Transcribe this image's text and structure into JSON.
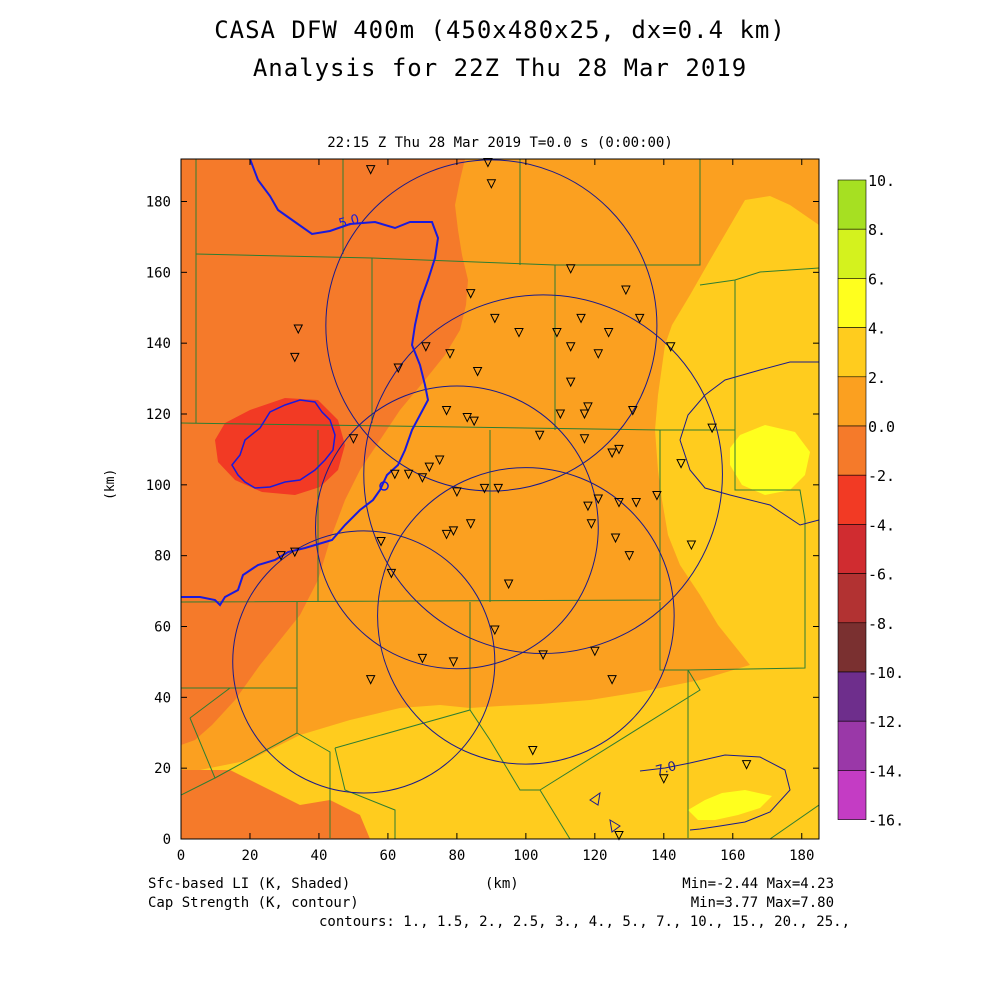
{
  "header": {
    "title_line1": "CASA DFW 400m (450x480x25, dx=0.4 km)",
    "title_line2": "Analysis for 22Z Thu 28 Mar 2019",
    "subtitle": "22:15 Z Thu 28 Mar 2019    T=0.0 s (0:00:00)"
  },
  "axes": {
    "xlabel": "(km)",
    "ylabel": "(km)",
    "x_ticks": [
      "0",
      "20",
      "40",
      "60",
      "80",
      "100",
      "120",
      "140",
      "160",
      "180"
    ],
    "y_ticks": [
      "0",
      "20",
      "40",
      "60",
      "80",
      "100",
      "120",
      "140",
      "160",
      "180"
    ],
    "xlim": [
      0,
      185
    ],
    "ylim": [
      0,
      192
    ]
  },
  "colorbar": {
    "labels": [
      "10.",
      "8.",
      "6.",
      "4.",
      "2.",
      "0.0",
      "-2.",
      "-4.",
      "-6.",
      "-8.",
      "-10.",
      "-12.",
      "-14.",
      "-16."
    ],
    "colors": [
      "#a6e022",
      "#d4f21e",
      "#ffff1e",
      "#ffcc1e",
      "#fba020",
      "#f57a2a",
      "#f23a24",
      "#d02c30",
      "#b23232",
      "#7a3030",
      "#6e2e8c",
      "#9a38a8",
      "#c43cc4",
      "#e246e8"
    ]
  },
  "contour_labels": [
    "5.0",
    "7.0"
  ],
  "footer": {
    "left1": "Sfc-based LI (K, Shaded)",
    "left2": "Cap Strength (K, contour)",
    "center": "(km)",
    "right1": "Min=-2.44 Max=4.23",
    "right2": "Min=3.77 Max=7.80",
    "contours": "contours: 1., 1.5, 2., 2.5, 3., 4., 5., 7., 10., 15., 20., 25.,"
  },
  "chart_data": {
    "type": "heatmap",
    "field": "Sfc-based LI (K)",
    "min": -2.44,
    "max": 4.23,
    "contour_field_min": 3.77,
    "contour_field_max": 7.8,
    "radar_circles_km": [
      {
        "cx": 105,
        "cy": 103,
        "r": 52
      },
      {
        "cx": 80,
        "cy": 88,
        "r": 41
      },
      {
        "cx": 100,
        "cy": 63,
        "r": 43
      },
      {
        "cx": 53,
        "cy": 50,
        "r": 38
      },
      {
        "cx": 90,
        "cy": 145,
        "r": 48
      }
    ],
    "stations_km": [
      [
        55,
        189
      ],
      [
        89,
        191
      ],
      [
        90,
        185
      ],
      [
        34,
        144
      ],
      [
        33,
        136
      ],
      [
        84,
        154
      ],
      [
        91,
        147
      ],
      [
        98,
        143
      ],
      [
        113,
        161
      ],
      [
        109,
        143
      ],
      [
        116,
        147
      ],
      [
        113,
        139
      ],
      [
        121,
        137
      ],
      [
        124,
        143
      ],
      [
        129,
        155
      ],
      [
        133,
        147
      ],
      [
        142,
        139
      ],
      [
        63,
        133
      ],
      [
        71,
        139
      ],
      [
        78,
        137
      ],
      [
        86,
        132
      ],
      [
        113,
        129
      ],
      [
        77,
        121
      ],
      [
        83,
        119
      ],
      [
        85,
        118
      ],
      [
        104,
        114
      ],
      [
        110,
        120
      ],
      [
        117,
        120
      ],
      [
        118,
        122
      ],
      [
        117,
        113
      ],
      [
        127,
        110
      ],
      [
        131,
        121
      ],
      [
        125,
        109
      ],
      [
        154,
        116
      ],
      [
        145,
        106
      ],
      [
        50,
        113
      ],
      [
        62,
        103
      ],
      [
        66,
        103
      ],
      [
        72,
        105
      ],
      [
        75,
        107
      ],
      [
        70,
        102
      ],
      [
        80,
        98
      ],
      [
        88,
        99
      ],
      [
        92,
        99
      ],
      [
        118,
        94
      ],
      [
        119,
        89
      ],
      [
        121,
        96
      ],
      [
        127,
        95
      ],
      [
        132,
        95
      ],
      [
        126,
        85
      ],
      [
        138,
        97
      ],
      [
        148,
        83
      ],
      [
        58,
        84
      ],
      [
        77,
        86
      ],
      [
        79,
        87
      ],
      [
        84,
        89
      ],
      [
        61,
        75
      ],
      [
        95,
        72
      ],
      [
        130,
        80
      ],
      [
        29,
        80
      ],
      [
        33,
        81
      ],
      [
        91,
        59
      ],
      [
        70,
        51
      ],
      [
        79,
        50
      ],
      [
        105,
        52
      ],
      [
        120,
        53
      ],
      [
        125,
        45
      ],
      [
        55,
        45
      ],
      [
        102,
        25
      ],
      [
        140,
        17
      ],
      [
        164,
        21
      ],
      [
        127,
        1
      ]
    ]
  }
}
